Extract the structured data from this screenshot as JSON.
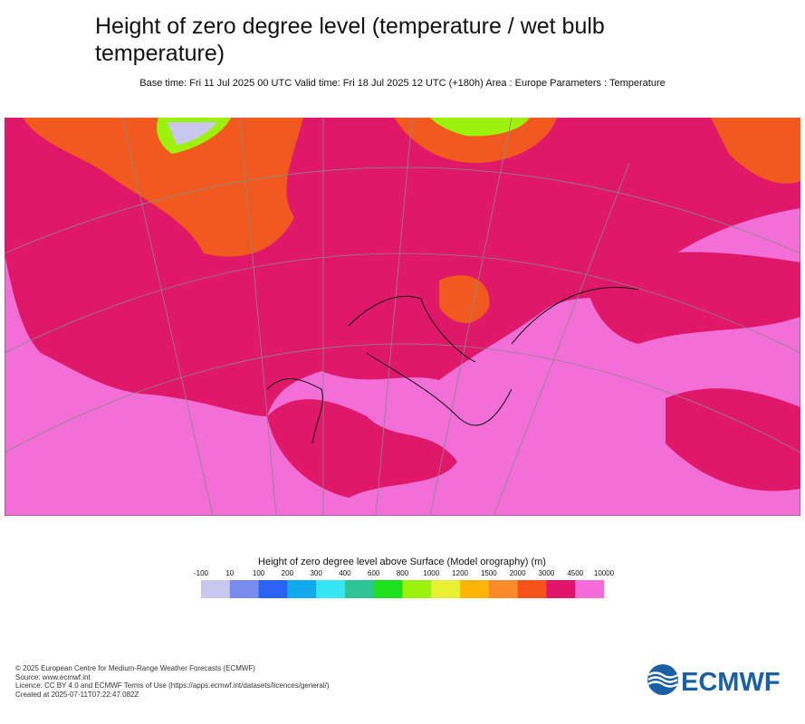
{
  "header": {
    "title": "Height of zero degree level (temperature / wet bulb temperature)",
    "subtitle": "Base time: Fri 11 Jul 2025 00 UTC Valid time: Fri 18 Jul 2025 12 UTC (+180h) Area : Europe Parameters : Temperature"
  },
  "colorbar": {
    "title": "Height of zero degree level above Surface (Model orography) (m)",
    "ticks": [
      -100,
      10,
      100,
      200,
      300,
      400,
      600,
      800,
      1000,
      1200,
      1500,
      2000,
      3000,
      4500,
      10000
    ],
    "colors": [
      "#c8c8ee",
      "#7b8cf0",
      "#2a62f2",
      "#12aae8",
      "#36e6f4",
      "#2ec496",
      "#1ee01e",
      "#9cf20c",
      "#e8f036",
      "#fdb508",
      "#fb8a2c",
      "#f5521a",
      "#e01468",
      "#f56cd8"
    ]
  },
  "footer": {
    "lines": [
      "© 2025 European Centre for Medium-Range Weather Forecasts (ECMWF)",
      "Source: www.ecmwf.int",
      "Licence: CC BY 4.0 and ECMWF Terms of Use (https://apps.ecmwf.int/datasets/licences/general/)",
      "Created at 2025-07-11T07:22:47.082Z"
    ]
  },
  "logo": {
    "text": "ECMWF"
  }
}
